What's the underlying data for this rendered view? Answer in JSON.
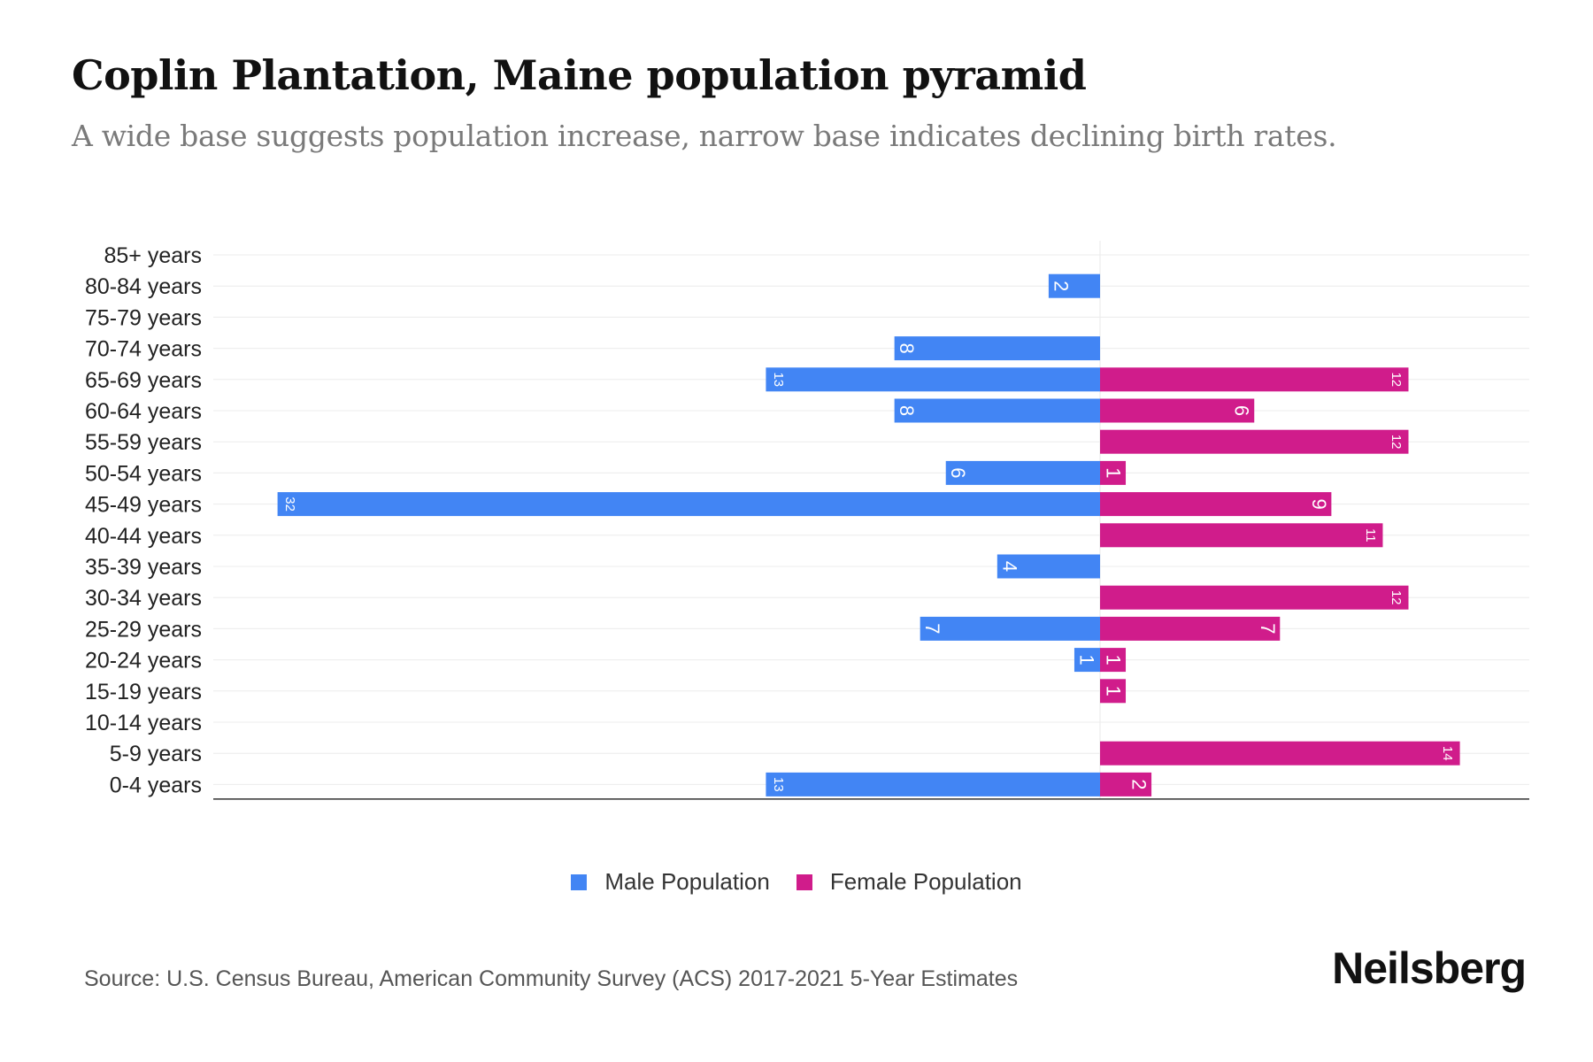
{
  "header": {
    "title": "Coplin Plantation, Maine population pyramid",
    "subtitle": "A wide base suggests population increase, narrow base indicates declining birth rates."
  },
  "chart_data": {
    "type": "bar",
    "orientation": "horizontal-diverging",
    "categories": [
      "85+ years",
      "80-84 years",
      "75-79 years",
      "70-74 years",
      "65-69 years",
      "60-64 years",
      "55-59 years",
      "50-54 years",
      "45-49 years",
      "40-44 years",
      "35-39 years",
      "30-34 years",
      "25-29 years",
      "20-24 years",
      "15-19 years",
      "10-14 years",
      "5-9 years",
      "0-4 years"
    ],
    "series": [
      {
        "name": "Male Population",
        "color": "#4285f4",
        "direction": "left",
        "values": [
          0,
          2,
          0,
          8,
          13,
          8,
          0,
          6,
          32,
          0,
          4,
          0,
          7,
          1,
          0,
          0,
          0,
          13
        ]
      },
      {
        "name": "Female Population",
        "color": "#d01c8b",
        "direction": "right",
        "values": [
          0,
          0,
          0,
          0,
          12,
          6,
          12,
          1,
          9,
          11,
          0,
          12,
          7,
          1,
          1,
          0,
          14,
          2
        ]
      }
    ],
    "title": "Coplin Plantation, Maine population pyramid",
    "xlabel": "",
    "ylabel": "",
    "xlim": [
      -34.5,
      16.7
    ]
  },
  "legend": {
    "male_label": "Male Population",
    "female_label": "Female Population",
    "male_color": "#4285f4",
    "female_color": "#d01c8b"
  },
  "footer": {
    "source": "Source: U.S. Census Bureau, American Community Survey (ACS) 2017-2021 5-Year Estimates",
    "brand": "Neilsberg"
  }
}
